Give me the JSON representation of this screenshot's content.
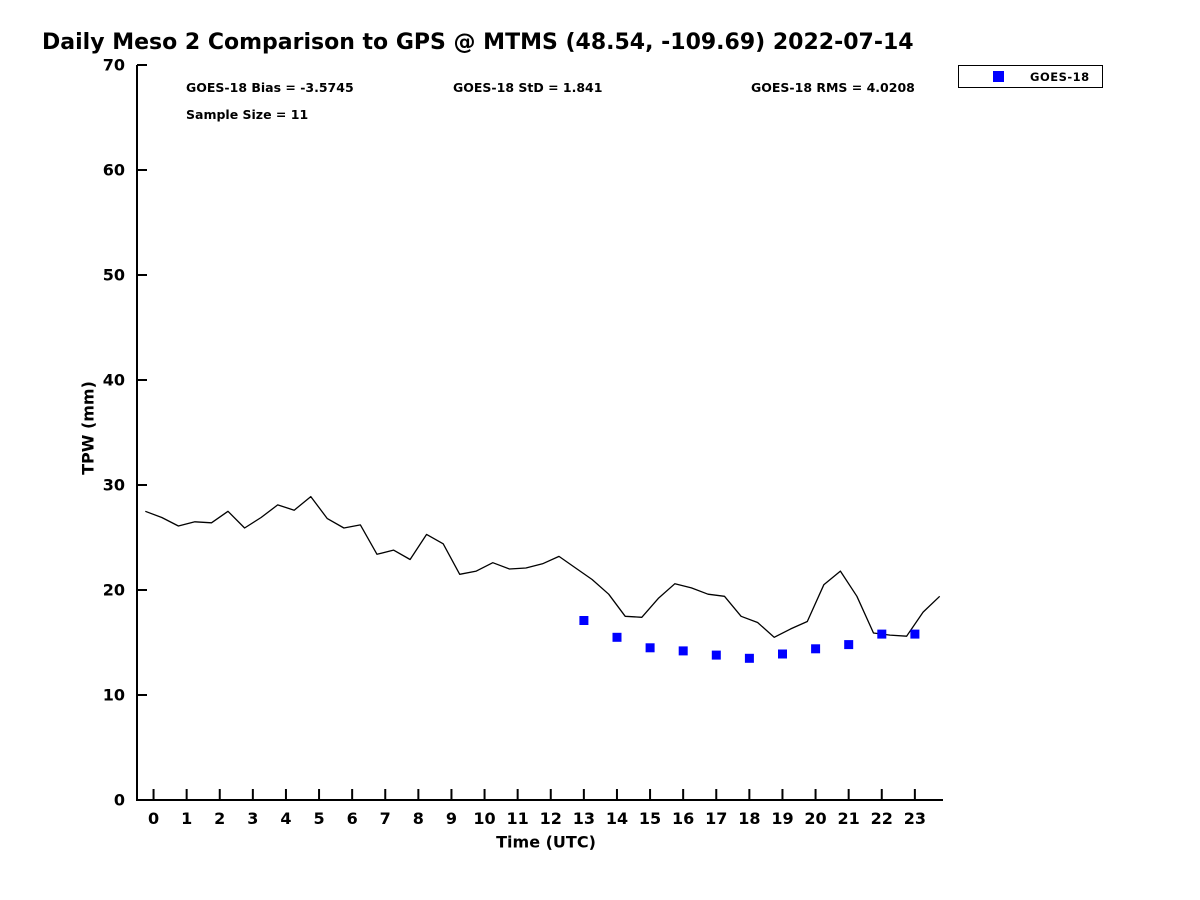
{
  "chart_data": {
    "type": "line",
    "title": "Daily Meso 2 Comparison to GPS @ MTMS (48.54, -109.69) 2022-07-14",
    "xlabel": "Time (UTC)",
    "ylabel": "TPW (mm)",
    "xlim": [
      -0.5,
      23.85
    ],
    "ylim": [
      0,
      70
    ],
    "x_ticks": [
      0,
      1,
      2,
      3,
      4,
      5,
      6,
      7,
      8,
      9,
      10,
      11,
      12,
      13,
      14,
      15,
      16,
      17,
      18,
      19,
      20,
      21,
      22,
      23
    ],
    "y_ticks": [
      0,
      10,
      20,
      30,
      40,
      50,
      60,
      70
    ],
    "grid": false,
    "annotations": {
      "bias": "GOES-18 Bias = -3.5745",
      "std": "GOES-18 StD = 1.841",
      "rms": "GOES-18 RMS = 4.0208",
      "sample_size": "Sample Size = 11"
    },
    "legend": {
      "position": "top-right",
      "entries": [
        {
          "label": "GOES-18",
          "marker": "square",
          "color": "#0000ff"
        }
      ]
    },
    "series": [
      {
        "name": "GPS",
        "type": "line",
        "color": "#000000",
        "line_width": 1.3,
        "x": [
          -0.25,
          0.25,
          0.75,
          1.25,
          1.75,
          2.25,
          2.75,
          3.25,
          3.75,
          4.25,
          4.75,
          5.25,
          5.75,
          6.25,
          6.75,
          7.25,
          7.75,
          8.25,
          8.75,
          9.25,
          9.75,
          10.25,
          10.75,
          11.25,
          11.75,
          12.25,
          12.75,
          13.25,
          13.75,
          14.25,
          14.75,
          15.25,
          15.75,
          16.25,
          16.75,
          17.25,
          17.75,
          18.25,
          18.75,
          19.25,
          19.75,
          20.25,
          20.75,
          21.25,
          21.75,
          22.25,
          22.75,
          23.25,
          23.75
        ],
        "y": [
          27.5,
          26.9,
          26.1,
          26.5,
          26.4,
          27.5,
          25.9,
          26.9,
          28.1,
          27.6,
          28.9,
          26.8,
          25.9,
          26.2,
          23.4,
          23.8,
          22.9,
          25.3,
          24.4,
          21.5,
          21.8,
          22.6,
          22.0,
          22.1,
          22.5,
          23.2,
          22.1,
          21.0,
          19.6,
          17.5,
          17.4,
          19.2,
          20.6,
          20.2,
          19.6,
          19.4,
          17.5,
          16.9,
          15.5,
          16.3,
          17.0,
          20.5,
          21.8,
          19.4,
          15.9,
          15.7,
          15.6,
          17.9,
          19.4
        ]
      },
      {
        "name": "GOES-18",
        "type": "scatter",
        "marker": "square",
        "marker_size": 9,
        "color": "#0000ff",
        "x": [
          13,
          14,
          15,
          16,
          17,
          18,
          19,
          20,
          21,
          22,
          23
        ],
        "y": [
          17.1,
          15.5,
          14.5,
          14.2,
          13.8,
          13.5,
          13.9,
          14.4,
          14.8,
          15.8,
          15.8
        ]
      }
    ]
  }
}
